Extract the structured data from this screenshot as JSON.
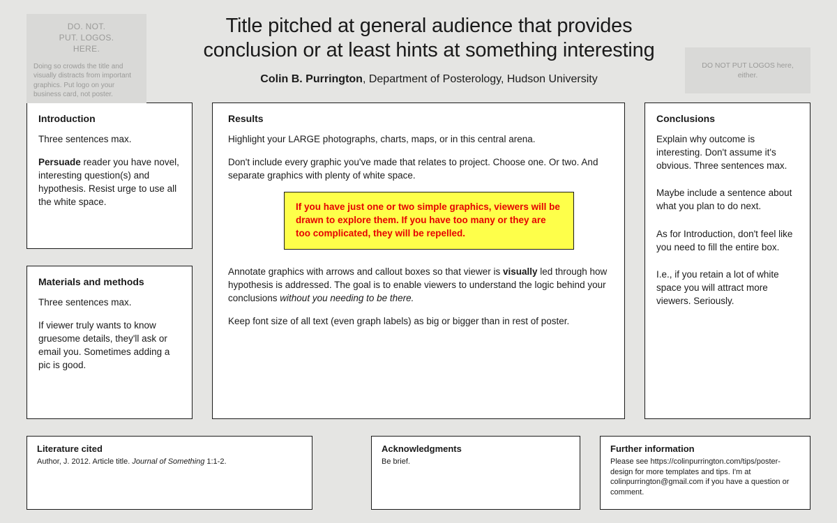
{
  "logos": {
    "left_big": "DO. NOT.\nPUT. LOGOS.\nHERE.",
    "left_small": "Doing so crowds the title and visually distracts from important graphics. Put logo on your business card, not poster.",
    "right": "DO NOT PUT LOGOS here, either."
  },
  "header": {
    "title": "Title pitched at general audience that provides conclusion or at least hints at something interesting",
    "author": "Colin B. Purrington",
    "affiliation": ", Department of Posterology, Hudson University"
  },
  "intro": {
    "heading": "Introduction",
    "p1": "Three sentences max.",
    "p2a": "Persuade",
    "p2b": " reader you have novel, interesting question(s) and hypothesis. Resist urge to use all the white space."
  },
  "methods": {
    "heading": "Materials and methods",
    "p1": "Three sentences max.",
    "p2": "If viewer truly wants to know gruesome details, they'll ask or email you. Sometimes adding a pic is good."
  },
  "results": {
    "heading": "Results",
    "p1": "Highlight your LARGE photographs, charts, maps, or in this central arena.",
    "p2": "Don't include every graphic you've made that relates to project. Choose one. Or two. And separate graphics with plenty of white space.",
    "callout": "If you have just one or two simple graphics, viewers will be drawn to explore them. If you have too many or they are too complicated, they will be repelled.",
    "p3a": "Annotate graphics with arrows and callout boxes so that viewer is ",
    "p3b": "visually",
    "p3c": " led through how hypothesis is addressed. The goal is to enable viewers to understand the logic behind your conclusions ",
    "p3d": "without you needing to be there.",
    "p4": "Keep font size of all text (even graph labels) as big or bigger than in rest of poster."
  },
  "conclusions": {
    "heading": "Conclusions",
    "p1": "Explain why outcome is interesting. Don't assume it's obvious. Three sentences max.",
    "p2": "Maybe include a sentence about what you plan to do next.",
    "p3": "As for Introduction, don't feel like you need to fill the entire box.",
    "p4": "I.e., if you retain a lot of white space you will attract more viewers. Seriously."
  },
  "literature": {
    "heading": "Literature cited",
    "textA": "Author, J. 2012. Article title. ",
    "textB": "Journal of Something",
    "textC": " 1:1-2."
  },
  "acknowledgments": {
    "heading": "Acknowledgments",
    "text": "Be brief."
  },
  "further": {
    "heading": "Further information",
    "text": "Please see https://colinpurrington.com/tips/poster-design for more templates and tips. I'm at colinpurrington@gmail.com if you have a question or comment."
  },
  "style": {
    "bg": "#e5e5e3",
    "box_bg": "#ffffff",
    "border": "#1a1a1a",
    "callout_bg": "#feff4a",
    "callout_text": "#e60000",
    "logo_bg": "#d9d9d7",
    "logo_text": "#9a9a98",
    "title_fontsize": 29,
    "body_fontsize": 13.5
  }
}
